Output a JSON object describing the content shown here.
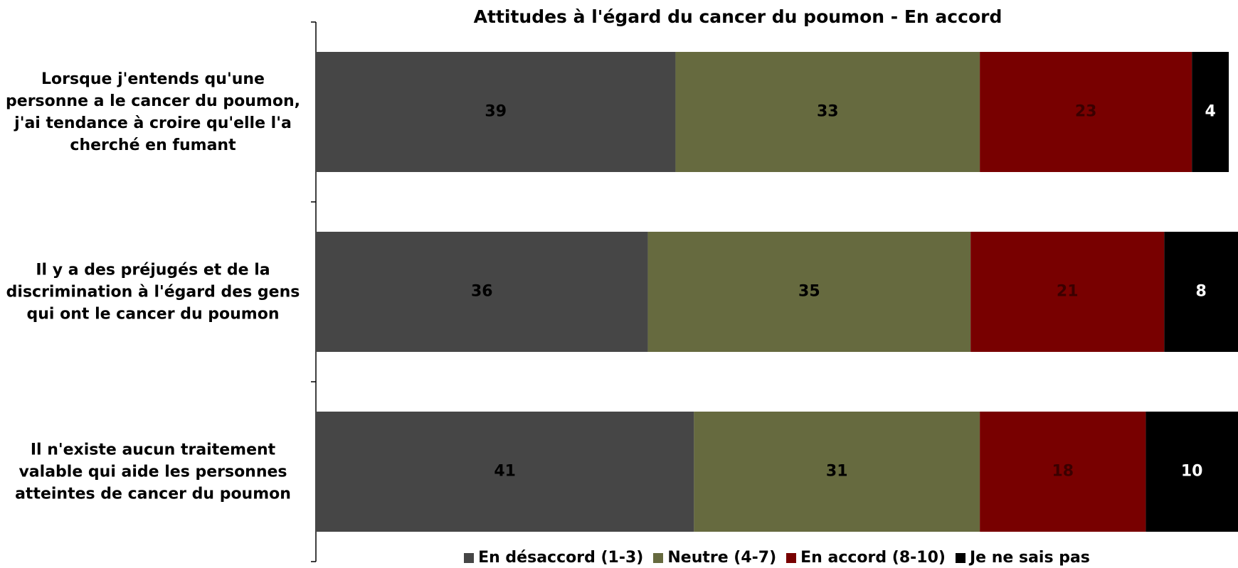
{
  "chart_data": {
    "type": "stacked_barh",
    "title": "Attitudes à l'égard du cancer du poumon - En accord",
    "categories": [
      "Lorsque j'entends qu'une personne a le cancer du poumon, j'ai tendance à croire qu'elle l'a cherché en fumant",
      "Il y a des préjugés et de la discrimination à l'égard des gens qui ont le cancer du poumon",
      "Il n'existe aucun traitement valable qui aide les personnes atteintes de cancer du poumon"
    ],
    "series": [
      {
        "name": "En désaccord (1-3)",
        "color": "#464646",
        "label_color": "#000000",
        "values": [
          39,
          36,
          41
        ]
      },
      {
        "name": "Neutre (4-7)",
        "color": "#666a3f",
        "label_color": "#000000",
        "values": [
          33,
          35,
          31
        ]
      },
      {
        "name": "En accord (8-10)",
        "color": "#780000",
        "label_color": "#3a0000",
        "values": [
          23,
          21,
          18
        ]
      },
      {
        "name": "Je ne sais pas",
        "color": "#000000",
        "label_color": "#ffffff",
        "values": [
          4,
          8,
          10
        ]
      }
    ],
    "xlim": [
      0,
      100
    ],
    "legend": "bottom"
  }
}
